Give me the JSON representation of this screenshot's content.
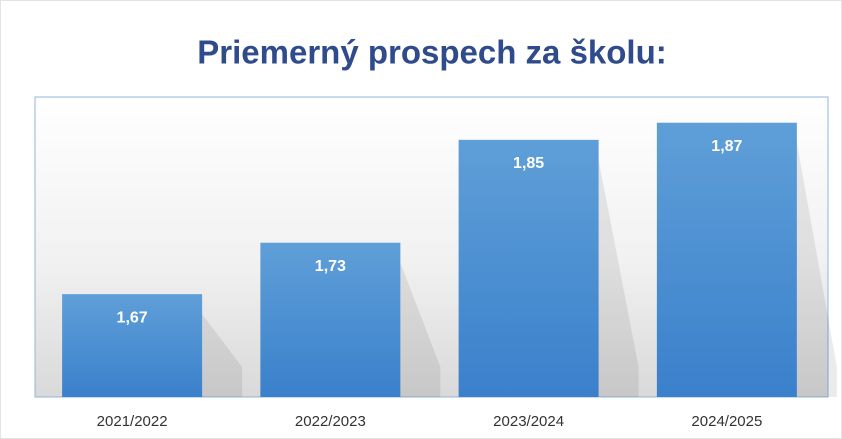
{
  "chart_data": {
    "type": "bar",
    "title": "Priemerný prospech za školu:",
    "categories": [
      "2021/2022",
      "2022/2023",
      "2023/2024",
      "2024/2025"
    ],
    "values": [
      1.67,
      1.73,
      1.85,
      1.87
    ],
    "value_labels": [
      "1,67",
      "1,73",
      "1,85",
      "1,87"
    ],
    "color": "#4a8fd3",
    "ylim": [
      1.55,
      1.9
    ]
  }
}
